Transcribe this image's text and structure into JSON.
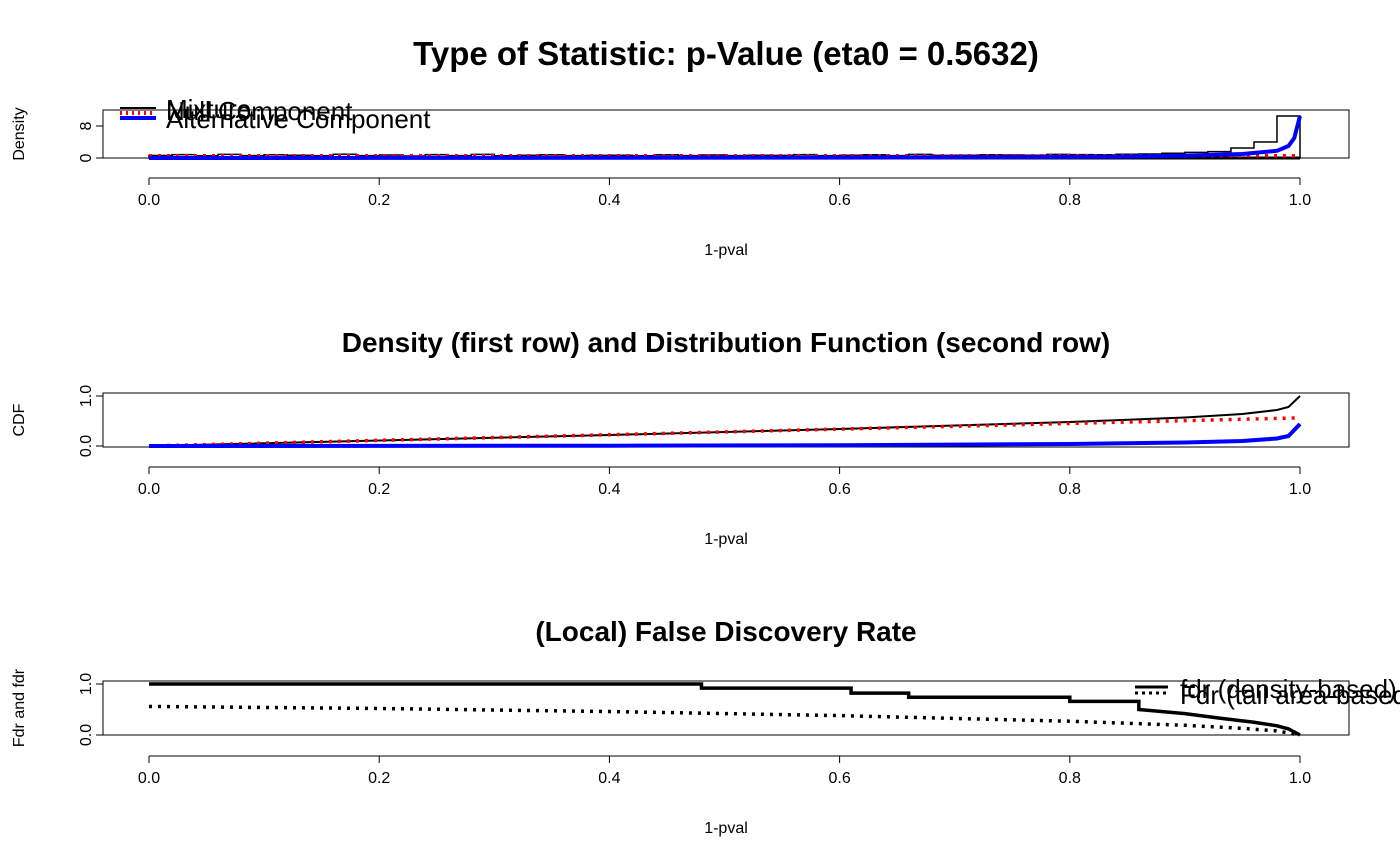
{
  "chart_data": [
    {
      "type": "line",
      "title": "Type of Statistic: p-Value (eta0 = 0.5632)",
      "xlabel": "1-pval",
      "ylabel": "Density",
      "xlim": [
        0,
        1
      ],
      "ylim": [
        0,
        12
      ],
      "x_ticks": [
        "0.0",
        "0.2",
        "0.4",
        "0.6",
        "0.8",
        "1.0"
      ],
      "y_ticks": [
        "0",
        "8"
      ],
      "histogram": {
        "bin_width": 0.02,
        "values": [
          0.62,
          0.85,
          0.55,
          0.9,
          0.6,
          0.8,
          0.7,
          0.55,
          0.95,
          0.6,
          0.75,
          0.5,
          0.85,
          0.6,
          0.9,
          0.55,
          0.7,
          0.8,
          0.6,
          0.65,
          0.7,
          0.55,
          0.8,
          0.6,
          0.75,
          0.6,
          0.7,
          0.65,
          0.85,
          0.6,
          0.7,
          0.8,
          0.6,
          0.9,
          0.65,
          0.7,
          0.8,
          0.75,
          0.7,
          0.9,
          0.85,
          0.8,
          0.95,
          1.0,
          1.2,
          1.4,
          1.6,
          2.5,
          4.0,
          10.5
        ]
      },
      "series": [
        {
          "name": "Mixture",
          "style": "histogram",
          "color": "#000000"
        },
        {
          "name": "Null Component",
          "style": "dotted",
          "color": "#ff0000",
          "x": [
            0,
            0.2,
            0.4,
            0.6,
            0.8,
            0.9,
            0.95,
            0.98,
            1.0
          ],
          "values": [
            0.56,
            0.56,
            0.56,
            0.56,
            0.56,
            0.56,
            0.56,
            0.56,
            0.56
          ]
        },
        {
          "name": "Alternative Component",
          "style": "solid",
          "color": "#0000ff",
          "x": [
            0,
            0.2,
            0.4,
            0.6,
            0.8,
            0.85,
            0.9,
            0.95,
            0.98,
            0.99,
            0.995,
            1.0
          ],
          "values": [
            0.0,
            0.02,
            0.05,
            0.1,
            0.25,
            0.35,
            0.6,
            1.0,
            1.8,
            3.0,
            5.0,
            10.5
          ]
        }
      ],
      "legend": {
        "position": "top-left",
        "entries": [
          "Mixture",
          "Null Component",
          "Alternative Component"
        ]
      }
    },
    {
      "type": "line",
      "title": "Density (first row) and Distribution Function (second row)",
      "xlabel": "1-pval",
      "ylabel": "CDF",
      "xlim": [
        0,
        1
      ],
      "ylim": [
        0,
        1
      ],
      "x_ticks": [
        "0.0",
        "0.2",
        "0.4",
        "0.6",
        "0.8",
        "1.0"
      ],
      "y_ticks": [
        "0.0",
        "1.0"
      ],
      "series": [
        {
          "name": "Mixture",
          "style": "solid-thin",
          "color": "#000000",
          "x": [
            0,
            0.2,
            0.4,
            0.6,
            0.8,
            0.9,
            0.95,
            0.98,
            0.99,
            1.0
          ],
          "values": [
            0.0,
            0.11,
            0.22,
            0.34,
            0.48,
            0.57,
            0.64,
            0.72,
            0.78,
            1.0
          ]
        },
        {
          "name": "Null Component",
          "style": "dotted",
          "color": "#ff0000",
          "x": [
            0,
            0.2,
            0.4,
            0.6,
            0.8,
            1.0
          ],
          "values": [
            0.0,
            0.113,
            0.225,
            0.338,
            0.451,
            0.563
          ]
        },
        {
          "name": "Alternative Component",
          "style": "solid",
          "color": "#0000ff",
          "x": [
            0,
            0.2,
            0.4,
            0.6,
            0.8,
            0.9,
            0.95,
            0.98,
            0.99,
            1.0
          ],
          "values": [
            0.0,
            0.002,
            0.006,
            0.015,
            0.04,
            0.07,
            0.1,
            0.15,
            0.2,
            0.44
          ]
        }
      ]
    },
    {
      "type": "line",
      "title": "(Local) False Discovery Rate",
      "xlabel": "1-pval",
      "ylabel": "Fdr and fdr",
      "xlim": [
        0,
        1
      ],
      "ylim": [
        0,
        1
      ],
      "x_ticks": [
        "0.0",
        "0.2",
        "0.4",
        "0.6",
        "0.8",
        "1.0"
      ],
      "y_ticks": [
        "0.0",
        "1.0"
      ],
      "series": [
        {
          "name": "fdr (density-based)",
          "style": "solid-step",
          "color": "#000000",
          "x": [
            0,
            0.48,
            0.48,
            0.61,
            0.61,
            0.66,
            0.66,
            0.8,
            0.8,
            0.86,
            0.86,
            0.9,
            0.93,
            0.96,
            0.98,
            0.99,
            1.0
          ],
          "values": [
            1.0,
            1.0,
            0.92,
            0.92,
            0.82,
            0.82,
            0.74,
            0.74,
            0.66,
            0.66,
            0.5,
            0.42,
            0.33,
            0.25,
            0.18,
            0.12,
            0.0
          ]
        },
        {
          "name": "Fdr (tail area-based)",
          "style": "dotted",
          "color": "#000000",
          "x": [
            0,
            0.2,
            0.4,
            0.6,
            0.8,
            0.9,
            0.95,
            0.98,
            1.0
          ],
          "values": [
            0.56,
            0.52,
            0.46,
            0.38,
            0.27,
            0.19,
            0.13,
            0.08,
            0.0
          ]
        }
      ],
      "legend": {
        "position": "top-right",
        "entries": [
          "fdr (density-based)",
          "Fdr (tail area-based)"
        ]
      }
    }
  ]
}
